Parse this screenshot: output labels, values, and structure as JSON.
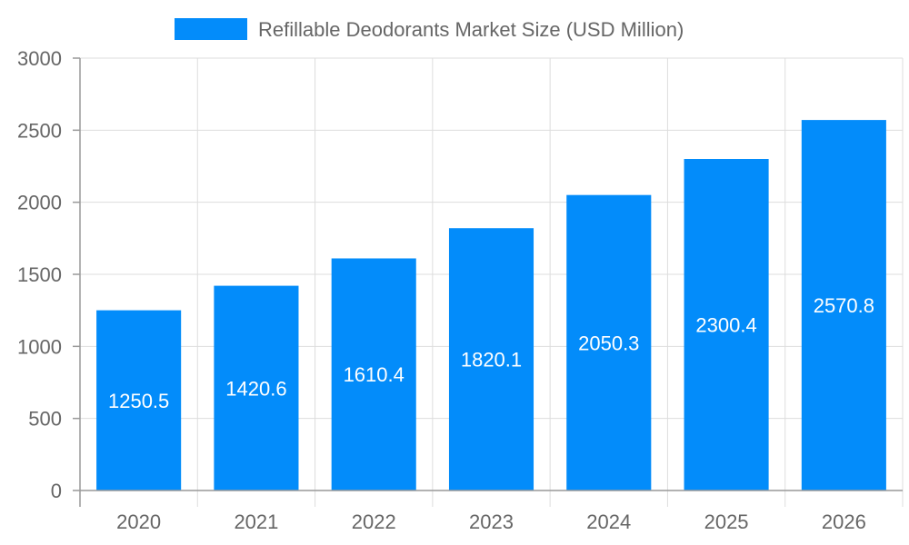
{
  "chart_data": {
    "type": "bar",
    "categories": [
      "2020",
      "2021",
      "2022",
      "2023",
      "2024",
      "2025",
      "2026"
    ],
    "series": [
      {
        "name": "Refillable Deodorants Market Size (USD Million)",
        "values": [
          1250.5,
          1420.6,
          1610.4,
          1820.1,
          2050.3,
          2300.4,
          2570.8
        ],
        "color": "#038cfa"
      }
    ],
    "y_ticks": [
      "0",
      "500",
      "1000",
      "1500",
      "2000",
      "2500",
      "3000"
    ],
    "ylim": [
      0,
      3000
    ],
    "grid": true,
    "legend_position": "top-center",
    "data_labels": true
  }
}
